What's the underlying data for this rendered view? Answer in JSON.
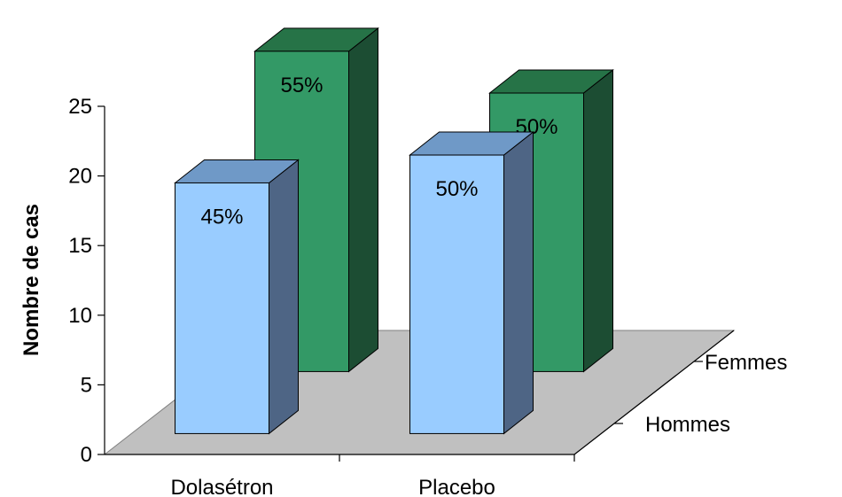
{
  "chart_data": {
    "type": "bar",
    "style": "3d-column",
    "title": "",
    "ylabel": "Nombre de cas",
    "xlabel": "",
    "ylim": [
      0,
      25
    ],
    "yticks": [
      "0",
      "5",
      "10",
      "15",
      "20",
      "25"
    ],
    "categories": [
      "Dolasétron",
      "Placebo"
    ],
    "series": [
      {
        "name": "Hommes",
        "values": [
          19.5,
          21.5
        ],
        "labels": [
          "45%",
          "50%"
        ]
      },
      {
        "name": "Femmes",
        "values": [
          24.5,
          21.5
        ],
        "labels": [
          "55%",
          "50%"
        ]
      }
    ],
    "colors": {
      "front_series": {
        "front": "#99ccff",
        "top": "#6f99c7",
        "side": "#4e6585"
      },
      "back_series": {
        "front": "#339966",
        "top": "#267347",
        "side": "#1c4d33"
      },
      "floor": "#c0c0c0",
      "axis": "#000000"
    },
    "grid": false
  }
}
